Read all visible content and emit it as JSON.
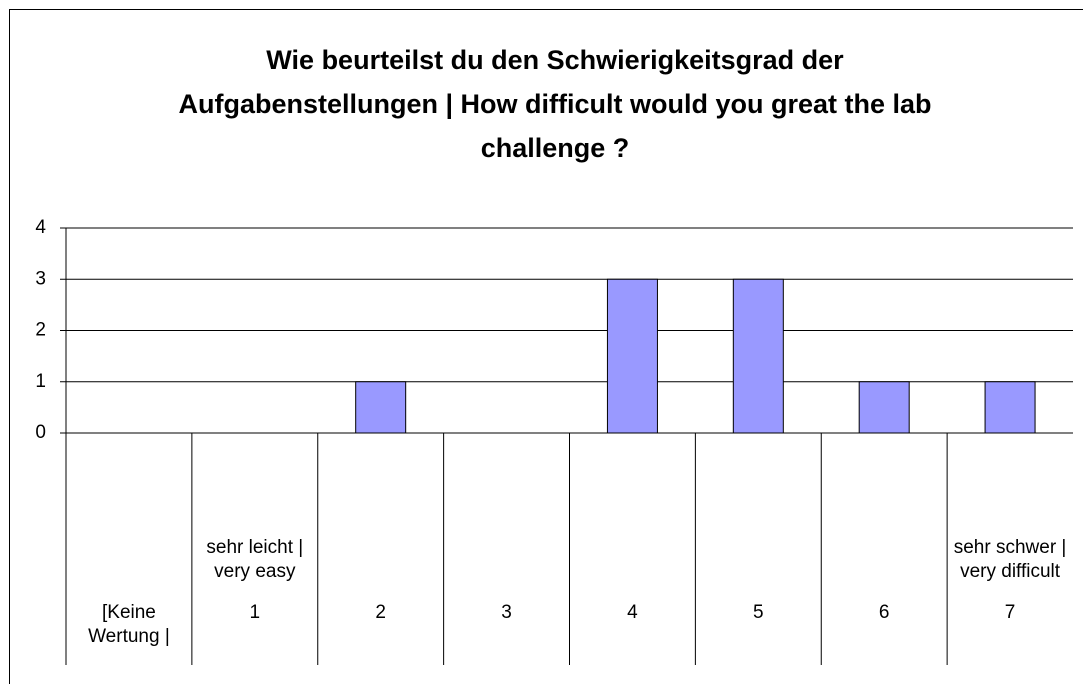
{
  "chart_data": {
    "type": "bar",
    "title": "Wie beurteilst du den Schwierigkeitsgrad der Aufgabenstellungen | How difficult would you great the lab challenge ?",
    "categories": [
      "[Keine Wertung |",
      "1",
      "2",
      "3",
      "4",
      "5",
      "6",
      "7"
    ],
    "category_descriptions": [
      null,
      "sehr leicht | very easy",
      null,
      null,
      null,
      null,
      null,
      "sehr schwer | very difficult"
    ],
    "values": [
      0,
      0,
      1,
      0,
      3,
      3,
      1,
      1
    ],
    "color": "#9999ff",
    "ylim": [
      0,
      4
    ],
    "yticks": [
      0,
      1,
      2,
      3,
      4
    ],
    "grid": true
  }
}
